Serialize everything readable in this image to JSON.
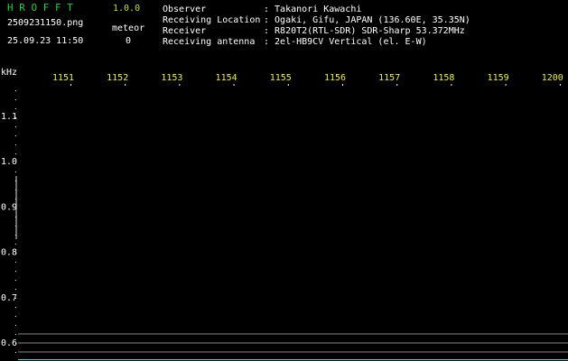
{
  "header": {
    "app_name": "H R O F F T",
    "version": "1.0.0",
    "file_name": "2509231150.png",
    "datetime": "25.09.23 11:50",
    "meteor_label": "meteor",
    "meteor_count": "0"
  },
  "info": [
    {
      "label": "Observer",
      "value": ": Takanori Kawachi"
    },
    {
      "label": "Receiving Location",
      "value": ": Ogaki, Gifu, JAPAN (136.60E, 35.35N)"
    },
    {
      "label": "Receiver",
      "value": ": R820T2(RTL-SDR) SDR-Sharp 53.372MHz"
    },
    {
      "label": "Receiving antenna",
      "value": ": 2el-HB9CV Vertical (el. E-W)"
    }
  ],
  "axis": {
    "unit": "kHz",
    "top_labels": [
      "1151",
      "1152",
      "1153",
      "1154",
      "1155",
      "1156",
      "1157",
      "1158",
      "1159",
      "1200"
    ],
    "left_labels": [
      "1.1",
      "1.0",
      "0.9",
      "0.8",
      "0.7",
      "0.6"
    ]
  }
}
